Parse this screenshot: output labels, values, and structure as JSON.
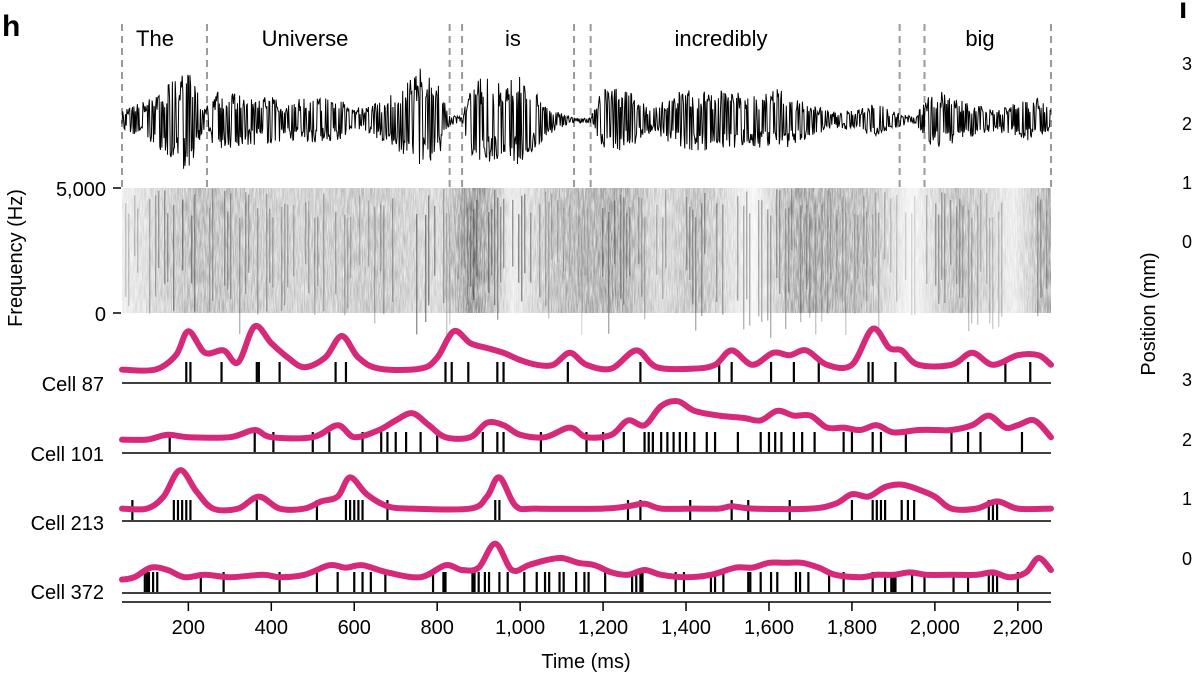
{
  "panel_h": {
    "label": "h"
  },
  "panel_i_partial": {
    "label": "i",
    "ylabel": "Position (mm)",
    "upper_ticks": [
      "3",
      "2",
      "1",
      "0"
    ],
    "lower_ticks": [
      "3",
      "2",
      "1",
      "0"
    ]
  },
  "words": [
    "The",
    "Universe",
    "is",
    "incredibly",
    "big"
  ],
  "colors": {
    "rate_curve": "#d6297a",
    "spike": "#000000",
    "boundary": "#9a9a9a"
  },
  "spectrogram": {
    "ylabel": "Frequency (Hz)",
    "ytick_labels": [
      "5,000",
      "0"
    ],
    "ytick_values": [
      5000,
      0
    ]
  },
  "time_axis": {
    "xlabel": "Time (ms)",
    "tick_values": [
      200,
      400,
      600,
      800,
      1000,
      1200,
      1400,
      1600,
      1800,
      2000,
      2200
    ],
    "tick_labels": [
      "200",
      "400",
      "600",
      "800",
      "1,000",
      "1,200",
      "1,400",
      "1,600",
      "1,800",
      "2,000",
      "2,200"
    ]
  },
  "chart_data": {
    "type": "line",
    "xlabel": "Time (ms)",
    "xlim": [
      40,
      2280
    ],
    "word_boundaries_ms": [
      40,
      245,
      830,
      860,
      1130,
      1170,
      1915,
      1975,
      2280
    ],
    "cells": [
      {
        "name": "Cell 87",
        "spikes_ms": [
          195,
          205,
          280,
          365,
          370,
          420,
          555,
          580,
          820,
          835,
          875,
          945,
          960,
          1115,
          1290,
          1480,
          1510,
          1605,
          1660,
          1720,
          1840,
          1850,
          1905,
          2080,
          2170,
          2230
        ],
        "rate_curve": [
          [
            40,
            0.05
          ],
          [
            120,
            0.05
          ],
          [
            170,
            0.35
          ],
          [
            200,
            0.85
          ],
          [
            240,
            0.4
          ],
          [
            285,
            0.45
          ],
          [
            320,
            0.2
          ],
          [
            360,
            0.95
          ],
          [
            400,
            0.6
          ],
          [
            440,
            0.3
          ],
          [
            480,
            0.1
          ],
          [
            530,
            0.3
          ],
          [
            570,
            0.75
          ],
          [
            610,
            0.3
          ],
          [
            660,
            0.07
          ],
          [
            760,
            0.07
          ],
          [
            800,
            0.3
          ],
          [
            840,
            0.85
          ],
          [
            880,
            0.6
          ],
          [
            920,
            0.5
          ],
          [
            960,
            0.4
          ],
          [
            1000,
            0.25
          ],
          [
            1040,
            0.15
          ],
          [
            1080,
            0.15
          ],
          [
            1120,
            0.4
          ],
          [
            1160,
            0.15
          ],
          [
            1220,
            0.07
          ],
          [
            1280,
            0.45
          ],
          [
            1330,
            0.1
          ],
          [
            1420,
            0.07
          ],
          [
            1470,
            0.15
          ],
          [
            1510,
            0.45
          ],
          [
            1560,
            0.15
          ],
          [
            1610,
            0.4
          ],
          [
            1650,
            0.35
          ],
          [
            1690,
            0.45
          ],
          [
            1740,
            0.15
          ],
          [
            1800,
            0.15
          ],
          [
            1850,
            0.9
          ],
          [
            1890,
            0.5
          ],
          [
            1920,
            0.45
          ],
          [
            1960,
            0.15
          ],
          [
            2040,
            0.15
          ],
          [
            2090,
            0.4
          ],
          [
            2140,
            0.15
          ],
          [
            2200,
            0.35
          ],
          [
            2250,
            0.35
          ],
          [
            2280,
            0.15
          ]
        ]
      },
      {
        "name": "Cell 101",
        "spikes_ms": [
          155,
          360,
          405,
          500,
          540,
          620,
          665,
          680,
          700,
          725,
          760,
          800,
          910,
          945,
          960,
          1050,
          1160,
          1200,
          1250,
          1300,
          1310,
          1320,
          1340,
          1355,
          1370,
          1385,
          1400,
          1420,
          1450,
          1470,
          1525,
          1580,
          1600,
          1615,
          1630,
          1660,
          1680,
          1710,
          1780,
          1800,
          1850,
          1870,
          1930,
          2040,
          2080,
          2110,
          2210
        ],
        "rate_curve": [
          [
            40,
            0.05
          ],
          [
            100,
            0.05
          ],
          [
            150,
            0.15
          ],
          [
            200,
            0.1
          ],
          [
            300,
            0.1
          ],
          [
            360,
            0.25
          ],
          [
            400,
            0.1
          ],
          [
            500,
            0.1
          ],
          [
            560,
            0.35
          ],
          [
            600,
            0.1
          ],
          [
            660,
            0.25
          ],
          [
            700,
            0.45
          ],
          [
            740,
            0.6
          ],
          [
            780,
            0.35
          ],
          [
            820,
            0.1
          ],
          [
            880,
            0.1
          ],
          [
            920,
            0.4
          ],
          [
            960,
            0.35
          ],
          [
            1000,
            0.15
          ],
          [
            1060,
            0.1
          ],
          [
            1120,
            0.3
          ],
          [
            1160,
            0.1
          ],
          [
            1220,
            0.15
          ],
          [
            1260,
            0.45
          ],
          [
            1300,
            0.35
          ],
          [
            1340,
            0.75
          ],
          [
            1380,
            0.85
          ],
          [
            1420,
            0.65
          ],
          [
            1480,
            0.55
          ],
          [
            1540,
            0.5
          ],
          [
            1580,
            0.45
          ],
          [
            1620,
            0.65
          ],
          [
            1660,
            0.55
          ],
          [
            1700,
            0.55
          ],
          [
            1740,
            0.3
          ],
          [
            1780,
            0.3
          ],
          [
            1820,
            0.25
          ],
          [
            1860,
            0.35
          ],
          [
            1900,
            0.2
          ],
          [
            1960,
            0.25
          ],
          [
            2000,
            0.25
          ],
          [
            2040,
            0.25
          ],
          [
            2090,
            0.35
          ],
          [
            2130,
            0.55
          ],
          [
            2170,
            0.3
          ],
          [
            2200,
            0.35
          ],
          [
            2240,
            0.45
          ],
          [
            2280,
            0.1
          ]
        ]
      },
      {
        "name": "Cell 213",
        "spikes_ms": [
          65,
          165,
          175,
          185,
          195,
          205,
          365,
          510,
          580,
          590,
          600,
          610,
          620,
          680,
          940,
          950,
          1260,
          1290,
          1410,
          1510,
          1550,
          1650,
          1800,
          1850,
          1860,
          1870,
          1880,
          1920,
          1935,
          1950,
          2130,
          2140,
          2150
        ],
        "rate_curve": [
          [
            40,
            0.05
          ],
          [
            100,
            0.05
          ],
          [
            140,
            0.3
          ],
          [
            180,
            0.85
          ],
          [
            220,
            0.4
          ],
          [
            260,
            0.05
          ],
          [
            320,
            0.05
          ],
          [
            370,
            0.3
          ],
          [
            420,
            0.05
          ],
          [
            480,
            0.05
          ],
          [
            520,
            0.2
          ],
          [
            560,
            0.3
          ],
          [
            590,
            0.7
          ],
          [
            630,
            0.35
          ],
          [
            680,
            0.1
          ],
          [
            740,
            0.05
          ],
          [
            880,
            0.05
          ],
          [
            920,
            0.3
          ],
          [
            950,
            0.7
          ],
          [
            990,
            0.1
          ],
          [
            1040,
            0.05
          ],
          [
            1200,
            0.05
          ],
          [
            1260,
            0.1
          ],
          [
            1300,
            0.15
          ],
          [
            1340,
            0.05
          ],
          [
            1420,
            0.05
          ],
          [
            1480,
            0.05
          ],
          [
            1510,
            0.1
          ],
          [
            1560,
            0.05
          ],
          [
            1700,
            0.05
          ],
          [
            1760,
            0.15
          ],
          [
            1800,
            0.35
          ],
          [
            1840,
            0.3
          ],
          [
            1880,
            0.5
          ],
          [
            1920,
            0.55
          ],
          [
            1960,
            0.45
          ],
          [
            2000,
            0.3
          ],
          [
            2040,
            0.05
          ],
          [
            2100,
            0.05
          ],
          [
            2150,
            0.2
          ],
          [
            2200,
            0.05
          ],
          [
            2280,
            0.05
          ]
        ]
      },
      {
        "name": "Cell 372",
        "spikes_ms": [
          95,
          100,
          105,
          115,
          125,
          230,
          285,
          420,
          510,
          560,
          600,
          620,
          640,
          675,
          790,
          815,
          820,
          885,
          890,
          900,
          915,
          925,
          950,
          970,
          1010,
          1040,
          1060,
          1070,
          1095,
          1105,
          1135,
          1155,
          1165,
          1205,
          1270,
          1280,
          1290,
          1295,
          1375,
          1395,
          1460,
          1470,
          1490,
          1550,
          1555,
          1580,
          1605,
          1620,
          1665,
          1675,
          1695,
          1745,
          1780,
          1850,
          1880,
          1895,
          1900,
          1905,
          1945,
          1975,
          2045,
          2080,
          2130,
          2140,
          2150,
          2200
        ],
        "rate_curve": [
          [
            40,
            0.05
          ],
          [
            70,
            0.1
          ],
          [
            110,
            0.3
          ],
          [
            150,
            0.25
          ],
          [
            190,
            0.1
          ],
          [
            240,
            0.15
          ],
          [
            300,
            0.1
          ],
          [
            380,
            0.15
          ],
          [
            420,
            0.1
          ],
          [
            480,
            0.15
          ],
          [
            540,
            0.35
          ],
          [
            580,
            0.3
          ],
          [
            620,
            0.35
          ],
          [
            680,
            0.2
          ],
          [
            760,
            0.1
          ],
          [
            820,
            0.35
          ],
          [
            860,
            0.25
          ],
          [
            900,
            0.3
          ],
          [
            940,
            0.8
          ],
          [
            980,
            0.25
          ],
          [
            1020,
            0.35
          ],
          [
            1060,
            0.45
          ],
          [
            1100,
            0.5
          ],
          [
            1140,
            0.4
          ],
          [
            1180,
            0.35
          ],
          [
            1220,
            0.2
          ],
          [
            1260,
            0.15
          ],
          [
            1300,
            0.25
          ],
          [
            1340,
            0.15
          ],
          [
            1400,
            0.1
          ],
          [
            1460,
            0.15
          ],
          [
            1520,
            0.3
          ],
          [
            1560,
            0.3
          ],
          [
            1600,
            0.4
          ],
          [
            1640,
            0.4
          ],
          [
            1680,
            0.4
          ],
          [
            1720,
            0.3
          ],
          [
            1760,
            0.15
          ],
          [
            1820,
            0.1
          ],
          [
            1860,
            0.15
          ],
          [
            1900,
            0.15
          ],
          [
            1940,
            0.2
          ],
          [
            1980,
            0.15
          ],
          [
            2040,
            0.15
          ],
          [
            2100,
            0.15
          ],
          [
            2140,
            0.2
          ],
          [
            2180,
            0.1
          ],
          [
            2220,
            0.2
          ],
          [
            2250,
            0.5
          ],
          [
            2280,
            0.25
          ]
        ]
      }
    ]
  }
}
